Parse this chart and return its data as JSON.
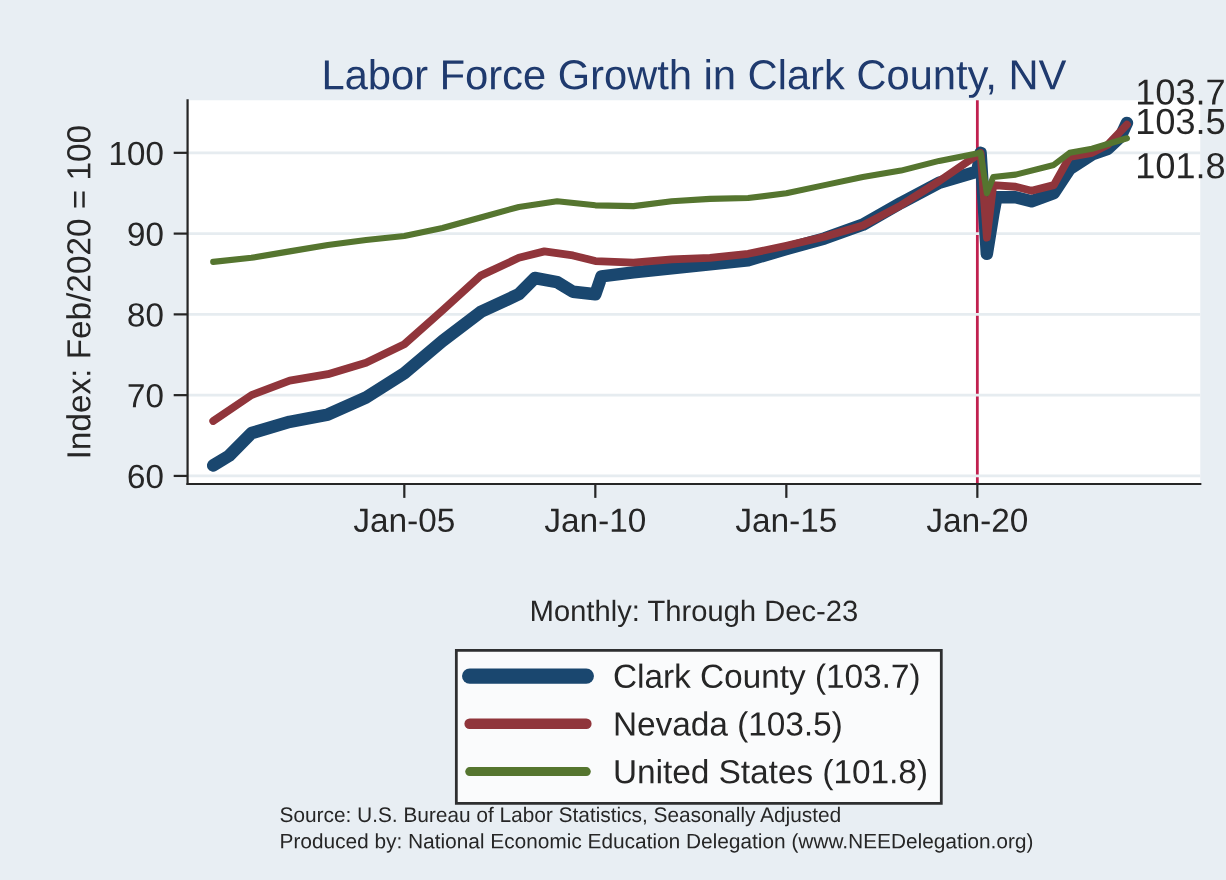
{
  "chart_data": {
    "type": "line",
    "title": "Labor Force Growth in Clark County, NV",
    "xlabel": "Monthly: Through Dec-23",
    "ylabel": "Index: Feb/2020 = 100",
    "series": [
      {
        "name": "Clark County (103.7)",
        "color": "#1a476f",
        "x": [
          "2000-01",
          "2000-06",
          "2001-01",
          "2002-01",
          "2003-01",
          "2004-01",
          "2005-01",
          "2006-01",
          "2007-01",
          "2008-01",
          "2008-06",
          "2009-01",
          "2009-06",
          "2010-01",
          "2010-03",
          "2011-01",
          "2012-01",
          "2013-01",
          "2014-01",
          "2015-01",
          "2016-01",
          "2017-01",
          "2018-01",
          "2019-01",
          "2020-01",
          "2020-02",
          "2020-04",
          "2020-06",
          "2020-07",
          "2021-01",
          "2021-06",
          "2022-01",
          "2022-06",
          "2023-01",
          "2023-06",
          "2023-10",
          "2023-12"
        ],
        "values": [
          61.3,
          62.5,
          65.3,
          66.7,
          67.6,
          69.7,
          72.7,
          76.7,
          80.3,
          82.5,
          84.5,
          84,
          82.8,
          82.5,
          84.7,
          85.2,
          85.7,
          86.2,
          86.7,
          88.1,
          89.4,
          91.1,
          93.8,
          96.3,
          97.7,
          100,
          87.5,
          92.4,
          94.5,
          94.5,
          94,
          95,
          98,
          99.8,
          100.5,
          102,
          103.7
        ]
      },
      {
        "name": "Nevada (103.5)",
        "color": "#90353b",
        "x": [
          "2000-01",
          "2001-01",
          "2002-01",
          "2003-01",
          "2004-01",
          "2005-01",
          "2006-01",
          "2007-01",
          "2008-01",
          "2008-09",
          "2009-06",
          "2010-01",
          "2011-01",
          "2012-01",
          "2013-01",
          "2014-01",
          "2015-01",
          "2016-01",
          "2017-01",
          "2018-01",
          "2019-01",
          "2020-02",
          "2020-04",
          "2020-06",
          "2021-01",
          "2021-06",
          "2022-01",
          "2022-06",
          "2023-01",
          "2023-06",
          "2023-12"
        ],
        "values": [
          66.8,
          70,
          71.8,
          72.6,
          74,
          76.3,
          80.5,
          84.8,
          87,
          87.8,
          87.3,
          86.6,
          86.4,
          86.8,
          87,
          87.5,
          88.5,
          89.6,
          91,
          93.5,
          96.5,
          100,
          89.5,
          96,
          95.8,
          95.3,
          96,
          99.5,
          100,
          101,
          103.5
        ]
      },
      {
        "name": "United States (101.8)",
        "color": "#55752f",
        "x": [
          "2000-01",
          "2001-01",
          "2002-01",
          "2003-01",
          "2004-01",
          "2005-01",
          "2006-01",
          "2007-01",
          "2008-01",
          "2009-01",
          "2010-01",
          "2011-01",
          "2012-01",
          "2013-01",
          "2014-01",
          "2015-01",
          "2016-01",
          "2017-01",
          "2018-01",
          "2019-01",
          "2020-02",
          "2020-04",
          "2020-06",
          "2021-01",
          "2022-01",
          "2022-06",
          "2023-01",
          "2023-12"
        ],
        "values": [
          86.5,
          87,
          87.8,
          88.6,
          89.2,
          89.7,
          90.7,
          92,
          93.3,
          94,
          93.5,
          93.4,
          94,
          94.3,
          94.4,
          95,
          96,
          97,
          97.8,
          99,
          100,
          95,
          97,
          97.3,
          98.5,
          100,
          100.5,
          101.8
        ]
      }
    ],
    "xlim": [
      "1999-05",
      "2025-11"
    ],
    "xticks": [
      {
        "value": "2005-01",
        "label": "Jan-05"
      },
      {
        "value": "2010-01",
        "label": "Jan-10"
      },
      {
        "value": "2015-01",
        "label": "Jan-15"
      },
      {
        "value": "2020-01",
        "label": "Jan-20"
      }
    ],
    "ylim": [
      59,
      106.5
    ],
    "yticks": [
      60,
      70,
      80,
      90,
      100
    ],
    "ref_lines": [
      {
        "axis": "x",
        "value": "2020-01",
        "color": "#c0204f"
      }
    ],
    "annotations": [
      {
        "text": "103.7",
        "x": "2023-12",
        "y": 103.7
      },
      {
        "text": "103.5",
        "x": "2023-12",
        "y": 103.5
      },
      {
        "text": "101.8",
        "x": "2023-12",
        "y": 101.8
      },
      "Source: U.S. Bureau of Labor Statistics, Seasonally Adjusted",
      "Produced by: National Economic Education Delegation (www.NEEDelegation.org)"
    ],
    "grid": "y",
    "legend": "bottom",
    "marker": "none",
    "line_style": "solid"
  }
}
